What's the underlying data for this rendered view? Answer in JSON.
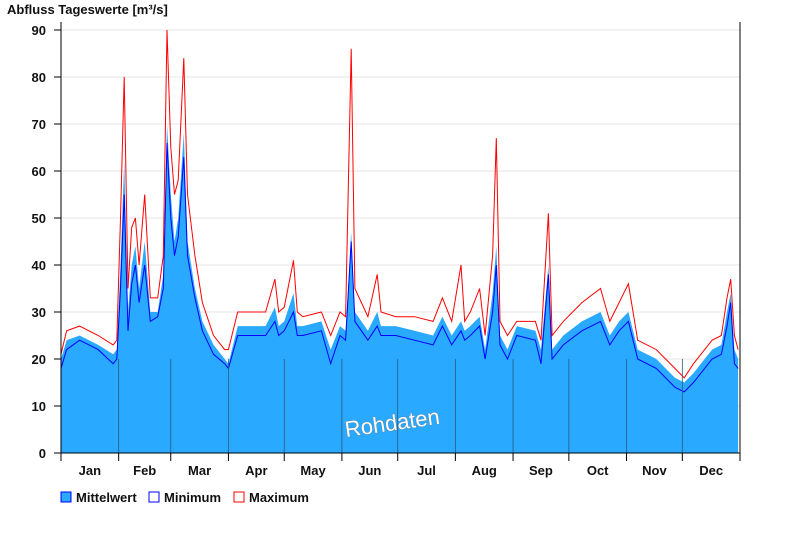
{
  "chart_data": {
    "type": "area",
    "title": "Abfluss Tageswerte [m³/s]",
    "ylim": [
      0,
      90
    ],
    "yticks": [
      0,
      10,
      20,
      30,
      40,
      50,
      60,
      70,
      80,
      90
    ],
    "months": [
      "Jan",
      "Feb",
      "Mar",
      "Apr",
      "May",
      "Jun",
      "Jul",
      "Aug",
      "Sep",
      "Oct",
      "Nov",
      "Dec"
    ],
    "month_start_days": [
      0,
      31,
      59,
      90,
      120,
      151,
      181,
      212,
      243,
      273,
      304,
      334,
      365
    ],
    "watermark": "Rohdaten",
    "grid": true,
    "legend_position": "bottom-left",
    "legend": [
      {
        "label": "Mittelwert",
        "color": "#29a9ff"
      },
      {
        "label": "Minimum",
        "color": "#0000ff"
      },
      {
        "label": "Maximum",
        "color": "#ff0000"
      }
    ],
    "day": [
      0,
      3,
      10,
      20,
      28,
      30,
      32,
      34,
      36,
      38,
      40,
      42,
      45,
      48,
      52,
      55,
      57,
      59,
      61,
      63,
      66,
      68,
      72,
      76,
      82,
      88,
      90,
      95,
      110,
      115,
      117,
      120,
      125,
      127,
      130,
      140,
      145,
      150,
      153,
      156,
      158,
      165,
      170,
      172,
      180,
      190,
      200,
      205,
      210,
      215,
      217,
      220,
      225,
      228,
      232,
      234,
      236,
      240,
      245,
      255,
      258,
      262,
      264,
      270,
      280,
      290,
      295,
      300,
      305,
      310,
      320,
      330,
      335,
      340,
      350,
      355,
      358,
      360,
      362,
      364
    ],
    "mean": [
      20,
      24,
      25,
      23,
      21,
      22,
      40,
      62,
      30,
      40,
      44,
      35,
      45,
      30,
      30,
      38,
      70,
      55,
      45,
      50,
      68,
      45,
      35,
      28,
      23,
      20,
      19,
      27,
      27,
      31,
      27,
      28,
      34,
      27,
      27,
      28,
      22,
      27,
      26,
      47,
      30,
      26,
      30,
      27,
      27,
      26,
      25,
      29,
      25,
      28,
      26,
      27,
      29,
      22,
      34,
      44,
      25,
      22,
      27,
      26,
      22,
      40,
      22,
      25,
      28,
      30,
      25,
      28,
      30,
      22,
      20,
      16,
      15,
      17,
      22,
      23,
      30,
      34,
      22,
      20
    ],
    "minimum": [
      18,
      22,
      24,
      22,
      19,
      20,
      35,
      55,
      26,
      36,
      40,
      32,
      40,
      28,
      29,
      35,
      66,
      50,
      42,
      46,
      63,
      42,
      33,
      26,
      21,
      19,
      18,
      25,
      25,
      28,
      25,
      26,
      30,
      25,
      25,
      26,
      19,
      25,
      24,
      45,
      28,
      24,
      27,
      25,
      25,
      24,
      23,
      27,
      23,
      26,
      24,
      25,
      27,
      20,
      30,
      40,
      23,
      20,
      25,
      24,
      19,
      38,
      20,
      23,
      26,
      28,
      23,
      26,
      28,
      20,
      18,
      14,
      13,
      15,
      20,
      21,
      27,
      32,
      19,
      18
    ],
    "maximum": [
      21,
      26,
      27,
      25,
      23,
      24,
      50,
      80,
      35,
      48,
      50,
      40,
      55,
      33,
      33,
      42,
      90,
      65,
      55,
      58,
      84,
      55,
      42,
      32,
      25,
      22,
      22,
      30,
      30,
      37,
      30,
      31,
      41,
      30,
      29,
      30,
      25,
      30,
      29,
      86,
      35,
      29,
      38,
      30,
      29,
      29,
      28,
      33,
      28,
      40,
      28,
      30,
      35,
      25,
      42,
      67,
      28,
      25,
      28,
      28,
      24,
      51,
      25,
      28,
      32,
      35,
      28,
      32,
      36,
      24,
      22,
      18,
      16,
      19,
      24,
      25,
      33,
      37,
      25,
      22
    ]
  }
}
